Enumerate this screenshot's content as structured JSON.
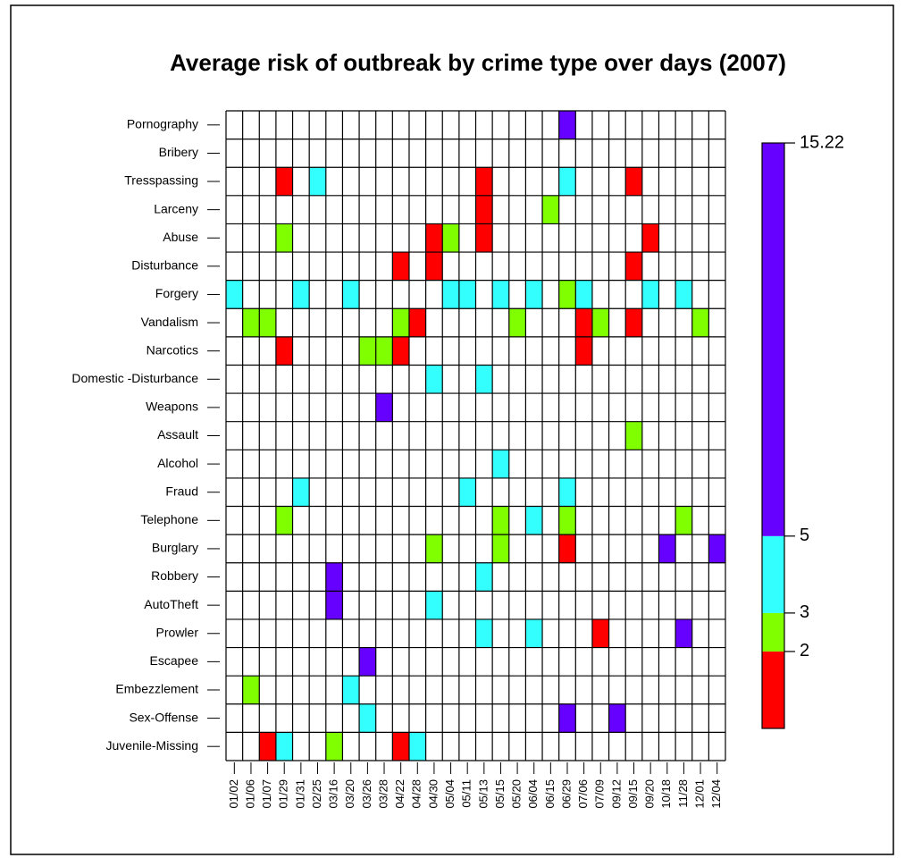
{
  "chart_data": {
    "type": "heatmap",
    "title": "Average risk of outbreak by crime type over days (2007)",
    "categories": [
      "01/02",
      "01/06",
      "01/07",
      "01/29",
      "01/31",
      "02/25",
      "03/16",
      "03/20",
      "03/26",
      "03/28",
      "04/22",
      "04/28",
      "04/30",
      "05/04",
      "05/11",
      "05/13",
      "05/15",
      "05/20",
      "06/04",
      "06/15",
      "06/29",
      "07/06",
      "07/09",
      "09/12",
      "09/15",
      "09/20",
      "10/18",
      "11/28",
      "12/01",
      "12/04"
    ],
    "series": [
      {
        "name": "Pornography",
        "values": [
          null,
          null,
          null,
          null,
          null,
          null,
          null,
          null,
          null,
          null,
          null,
          null,
          null,
          null,
          null,
          null,
          null,
          null,
          null,
          null,
          10,
          null,
          null,
          null,
          null,
          null,
          null,
          null,
          null,
          null
        ]
      },
      {
        "name": "Bribery",
        "values": [
          null,
          null,
          null,
          null,
          null,
          null,
          null,
          null,
          null,
          null,
          null,
          null,
          null,
          null,
          null,
          null,
          null,
          null,
          null,
          null,
          null,
          null,
          null,
          null,
          null,
          null,
          null,
          null,
          null,
          null
        ]
      },
      {
        "name": "Tresspassing",
        "values": [
          null,
          null,
          null,
          1.5,
          null,
          4,
          null,
          null,
          null,
          null,
          null,
          null,
          null,
          null,
          null,
          1.5,
          null,
          null,
          null,
          null,
          4,
          null,
          null,
          null,
          1.5,
          null,
          null,
          null,
          null,
          null
        ]
      },
      {
        "name": "Larceny",
        "values": [
          null,
          null,
          null,
          null,
          null,
          null,
          null,
          null,
          null,
          null,
          null,
          null,
          null,
          null,
          null,
          1.5,
          null,
          null,
          null,
          2.5,
          null,
          null,
          null,
          null,
          null,
          null,
          null,
          null,
          null,
          null
        ]
      },
      {
        "name": "Abuse",
        "values": [
          null,
          null,
          null,
          2.5,
          null,
          null,
          null,
          null,
          null,
          null,
          null,
          null,
          1.5,
          2.5,
          null,
          1.5,
          null,
          null,
          null,
          null,
          null,
          null,
          null,
          null,
          null,
          1.5,
          null,
          null,
          null,
          null
        ]
      },
      {
        "name": "Disturbance",
        "values": [
          null,
          null,
          null,
          null,
          null,
          null,
          null,
          null,
          null,
          null,
          1.5,
          null,
          1.5,
          null,
          null,
          null,
          null,
          null,
          null,
          null,
          null,
          null,
          null,
          null,
          1.5,
          null,
          null,
          null,
          null,
          null
        ]
      },
      {
        "name": "Forgery",
        "values": [
          4,
          null,
          null,
          null,
          4,
          null,
          null,
          4,
          null,
          null,
          null,
          null,
          null,
          4,
          4,
          null,
          4,
          null,
          4,
          null,
          2.5,
          4,
          null,
          null,
          null,
          4,
          null,
          4,
          null,
          null
        ]
      },
      {
        "name": "Vandalism",
        "values": [
          null,
          2.5,
          2.5,
          null,
          null,
          null,
          null,
          null,
          null,
          null,
          2.5,
          1.5,
          null,
          null,
          null,
          null,
          null,
          2.5,
          null,
          null,
          null,
          1.5,
          2.5,
          null,
          1.5,
          null,
          null,
          null,
          2.5,
          null
        ]
      },
      {
        "name": "Narcotics",
        "values": [
          null,
          null,
          null,
          1.5,
          null,
          null,
          null,
          null,
          2.5,
          2.5,
          1.5,
          null,
          null,
          null,
          null,
          null,
          null,
          null,
          null,
          null,
          null,
          1.5,
          null,
          null,
          null,
          null,
          null,
          null,
          null,
          null
        ]
      },
      {
        "name": "Domestic -Disturbance",
        "values": [
          null,
          null,
          null,
          null,
          null,
          null,
          null,
          null,
          null,
          null,
          null,
          null,
          4,
          null,
          null,
          4,
          null,
          null,
          null,
          null,
          null,
          null,
          null,
          null,
          null,
          null,
          null,
          null,
          null,
          null
        ]
      },
      {
        "name": "Weapons",
        "values": [
          null,
          null,
          null,
          null,
          null,
          null,
          null,
          null,
          null,
          10,
          null,
          null,
          null,
          null,
          null,
          null,
          null,
          null,
          null,
          null,
          null,
          null,
          null,
          null,
          null,
          null,
          null,
          null,
          null,
          null
        ]
      },
      {
        "name": "Assault",
        "values": [
          null,
          null,
          null,
          null,
          null,
          null,
          null,
          null,
          null,
          null,
          null,
          null,
          null,
          null,
          null,
          null,
          null,
          null,
          null,
          null,
          null,
          null,
          null,
          null,
          2.5,
          null,
          null,
          null,
          null,
          null
        ]
      },
      {
        "name": "Alcohol",
        "values": [
          null,
          null,
          null,
          null,
          null,
          null,
          null,
          null,
          null,
          null,
          null,
          null,
          null,
          null,
          null,
          null,
          4,
          null,
          null,
          null,
          null,
          null,
          null,
          null,
          null,
          null,
          null,
          null,
          null,
          null
        ]
      },
      {
        "name": "Fraud",
        "values": [
          null,
          null,
          null,
          null,
          4,
          null,
          null,
          null,
          null,
          null,
          null,
          null,
          null,
          null,
          4,
          null,
          null,
          null,
          null,
          null,
          4,
          null,
          null,
          null,
          null,
          null,
          null,
          null,
          null,
          null
        ]
      },
      {
        "name": "Telephone",
        "values": [
          null,
          null,
          null,
          2.5,
          null,
          null,
          null,
          null,
          null,
          null,
          null,
          null,
          null,
          null,
          null,
          null,
          2.5,
          null,
          4,
          null,
          2.5,
          null,
          null,
          null,
          null,
          null,
          null,
          2.5,
          null,
          null
        ]
      },
      {
        "name": "Burglary",
        "values": [
          null,
          null,
          null,
          null,
          null,
          null,
          null,
          null,
          null,
          null,
          null,
          null,
          2.5,
          null,
          null,
          null,
          2.5,
          null,
          null,
          null,
          1.5,
          null,
          null,
          null,
          null,
          null,
          10,
          null,
          null,
          10
        ]
      },
      {
        "name": "Robbery",
        "values": [
          null,
          null,
          null,
          null,
          null,
          null,
          10,
          null,
          null,
          null,
          null,
          null,
          null,
          null,
          null,
          4,
          null,
          null,
          null,
          null,
          null,
          null,
          null,
          null,
          null,
          null,
          null,
          null,
          null,
          null
        ]
      },
      {
        "name": "AutoTheft",
        "values": [
          null,
          null,
          null,
          null,
          null,
          null,
          10,
          null,
          null,
          null,
          null,
          null,
          4,
          null,
          null,
          null,
          null,
          null,
          null,
          null,
          null,
          null,
          null,
          null,
          null,
          null,
          null,
          null,
          null,
          null
        ]
      },
      {
        "name": "Prowler",
        "values": [
          null,
          null,
          null,
          null,
          null,
          null,
          null,
          null,
          null,
          null,
          null,
          null,
          null,
          null,
          null,
          4,
          null,
          null,
          4,
          null,
          null,
          null,
          1.5,
          null,
          null,
          null,
          null,
          10,
          null,
          null
        ]
      },
      {
        "name": "Escapee",
        "values": [
          null,
          null,
          null,
          null,
          null,
          null,
          null,
          null,
          10,
          null,
          null,
          null,
          null,
          null,
          null,
          null,
          null,
          null,
          null,
          null,
          null,
          null,
          null,
          null,
          null,
          null,
          null,
          null,
          null,
          null
        ]
      },
      {
        "name": "Embezzlement",
        "values": [
          null,
          2.5,
          null,
          null,
          null,
          null,
          null,
          4,
          null,
          null,
          null,
          null,
          null,
          null,
          null,
          null,
          null,
          null,
          null,
          null,
          null,
          null,
          null,
          null,
          null,
          null,
          null,
          null,
          null,
          null
        ]
      },
      {
        "name": "Sex-Offense",
        "values": [
          null,
          null,
          null,
          null,
          null,
          null,
          null,
          null,
          4,
          null,
          null,
          null,
          null,
          null,
          null,
          null,
          null,
          null,
          null,
          null,
          10,
          null,
          null,
          10,
          null,
          null,
          null,
          null,
          null,
          null
        ]
      },
      {
        "name": "Juvenile-Missing",
        "values": [
          null,
          null,
          1.5,
          4,
          null,
          null,
          2.5,
          null,
          null,
          null,
          1.5,
          4,
          null,
          null,
          null,
          null,
          null,
          null,
          null,
          null,
          null,
          null,
          null,
          null,
          null,
          null,
          null,
          null,
          null,
          null
        ]
      }
    ],
    "zlim": [
      0,
      15.22
    ],
    "zticks": [
      2,
      3,
      5,
      15.22
    ],
    "breaks": [
      2,
      3,
      5
    ],
    "colors": [
      "#ff0000",
      "#80ff00",
      "#33ffff",
      "#6600ff"
    ]
  }
}
